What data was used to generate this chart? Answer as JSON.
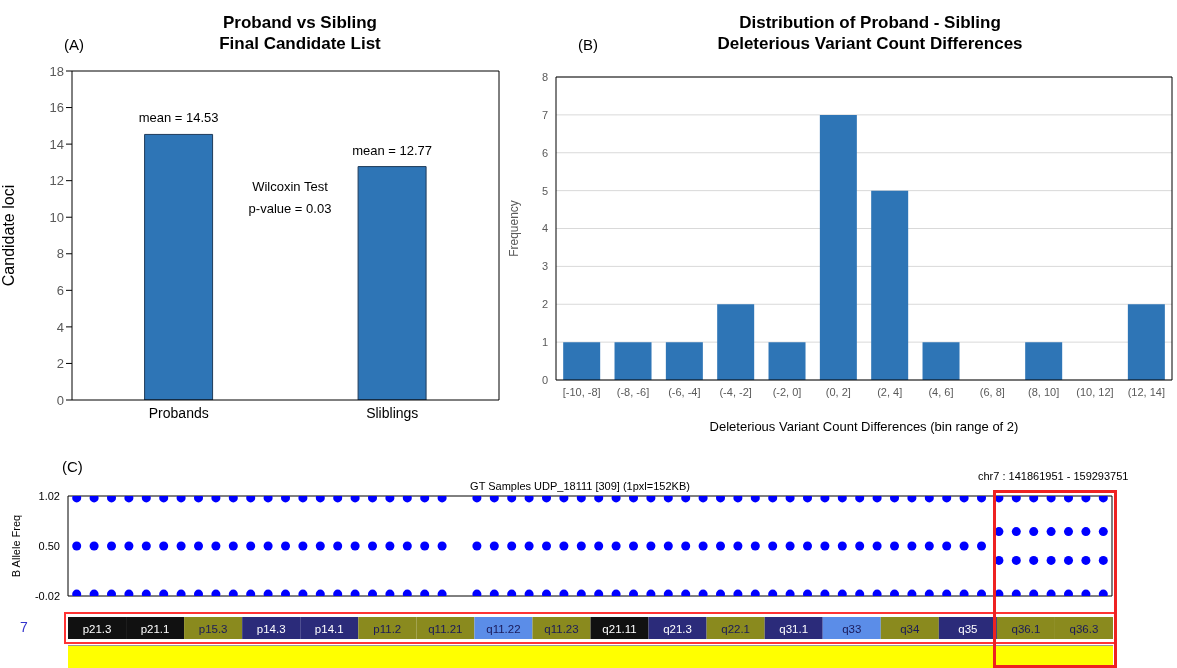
{
  "chart_data": [
    {
      "type": "bar",
      "title": "Proband vs Sibling\nFinal Candidate List",
      "ylabel": "Candidate loci",
      "categories": [
        "Probands",
        "Sliblings"
      ],
      "values": [
        14.53,
        12.77
      ],
      "value_labels": [
        "mean = 14.53",
        "mean = 12.77"
      ],
      "color": "#2e75b6",
      "ylim": [
        0,
        18
      ],
      "yticks": [
        0,
        2,
        4,
        6,
        8,
        10,
        12,
        14,
        16,
        18
      ],
      "grid": false,
      "annotations": [
        "(A)",
        "Wilcoxin Test",
        "p-value = 0.03"
      ]
    },
    {
      "type": "bar",
      "title": "Distribution of Proband - Sibling\nDeleterious Variant Count Differences",
      "xlabel": "Deleterious Variant Count Differences (bin range of 2)",
      "ylabel": "Frequency",
      "categories": [
        "[-10, -8]",
        "(-8, -6]",
        "(-6, -4]",
        "(-4, -2]",
        "(-2, 0]",
        "(0, 2]",
        "(2, 4]",
        "(4, 6]",
        "(6, 8]",
        "(8, 10]",
        "(10, 12]",
        "(12, 14]"
      ],
      "values": [
        1,
        1,
        1,
        2,
        1,
        7,
        5,
        1,
        0,
        1,
        0,
        2
      ],
      "color": "#2e75b6",
      "ylim": [
        0,
        8
      ],
      "yticks": [
        0,
        1,
        2,
        3,
        4,
        5,
        6,
        7,
        8
      ],
      "grid": "y",
      "annotations": [
        "(B)"
      ]
    },
    {
      "type": "scatter",
      "title": "GT Samples UDP_18111 [309]  (1pxl=152KB)",
      "ylabel": "B Allele Freq",
      "categories": [
        null,
        null,
        null,
        null,
        null,
        null,
        null,
        null,
        null,
        null,
        null,
        null,
        null,
        null,
        null,
        null,
        null,
        null,
        null,
        null,
        null,
        null,
        null,
        null,
        null,
        null,
        null,
        null,
        null,
        null,
        null,
        null,
        null,
        null,
        null,
        null,
        null,
        null,
        null,
        null,
        null,
        null,
        null,
        null,
        null,
        null,
        null,
        null,
        null,
        null,
        null,
        null,
        null,
        null,
        null,
        null,
        null,
        null,
        null,
        null
      ],
      "ylim": [
        -0.02,
        1.02
      ],
      "yticks": [
        -0.02,
        {
          "value": 0.5,
          "label": "0.50"
        },
        1.02
      ],
      "tick_labels": "y",
      "marker": "circle",
      "grid": false,
      "annotations": [
        "(C)",
        "chr7 : 141861951 - 159293751"
      ],
      "series": [
        {
          "color": "#0000ff",
          "values": [
            1,
            1,
            1,
            1,
            1,
            1,
            1,
            1,
            1,
            1,
            1,
            1,
            1,
            1,
            1,
            1,
            1,
            1,
            1,
            1,
            1,
            1,
            null,
            1,
            1,
            1,
            1,
            1,
            1,
            1,
            1,
            1,
            1,
            1,
            1,
            1,
            1,
            1,
            1,
            1,
            1,
            1,
            1,
            1,
            1,
            1,
            1,
            1,
            1,
            1,
            1,
            1,
            1,
            1,
            1,
            1,
            1,
            1,
            1,
            1
          ]
        },
        {
          "color": "#0000ff",
          "values": [
            0.5,
            0.5,
            0.5,
            0.5,
            0.5,
            0.5,
            0.5,
            0.5,
            0.5,
            0.5,
            0.5,
            0.5,
            0.5,
            0.5,
            0.5,
            0.5,
            0.5,
            0.5,
            0.5,
            0.5,
            0.5,
            0.5,
            null,
            0.5,
            0.5,
            0.5,
            0.5,
            0.5,
            0.5,
            0.5,
            0.5,
            0.5,
            0.5,
            0.5,
            0.5,
            0.5,
            0.5,
            0.5,
            0.5,
            0.5,
            0.5,
            0.5,
            0.5,
            0.5,
            0.5,
            0.5,
            0.5,
            0.5,
            0.5,
            0.5,
            0.5,
            0.5,
            0.5,
            null,
            null,
            null,
            null,
            null,
            null,
            null
          ]
        },
        {
          "color": "#0000ff",
          "values": [
            null,
            null,
            null,
            null,
            null,
            null,
            null,
            null,
            null,
            null,
            null,
            null,
            null,
            null,
            null,
            null,
            null,
            null,
            null,
            null,
            null,
            null,
            null,
            null,
            null,
            null,
            null,
            null,
            null,
            null,
            null,
            null,
            null,
            null,
            null,
            null,
            null,
            null,
            null,
            null,
            null,
            null,
            null,
            null,
            null,
            null,
            null,
            null,
            null,
            null,
            null,
            null,
            null,
            0.65,
            0.65,
            0.65,
            0.65,
            0.65,
            0.65,
            0.65
          ]
        },
        {
          "color": "#0000ff",
          "values": [
            null,
            null,
            null,
            null,
            null,
            null,
            null,
            null,
            null,
            null,
            null,
            null,
            null,
            null,
            null,
            null,
            null,
            null,
            null,
            null,
            null,
            null,
            null,
            null,
            null,
            null,
            null,
            null,
            null,
            null,
            null,
            null,
            null,
            null,
            null,
            null,
            null,
            null,
            null,
            null,
            null,
            null,
            null,
            null,
            null,
            null,
            null,
            null,
            null,
            null,
            null,
            null,
            null,
            0.35,
            0.35,
            0.35,
            0.35,
            0.35,
            0.35,
            0.35
          ]
        },
        {
          "color": "#0000ff",
          "values": [
            0,
            0,
            0,
            0,
            0,
            0,
            0,
            0,
            0,
            0,
            0,
            0,
            0,
            0,
            0,
            0,
            0,
            0,
            0,
            0,
            0,
            0,
            null,
            0,
            0,
            0,
            0,
            0,
            0,
            0,
            0,
            0,
            0,
            0,
            0,
            0,
            0,
            0,
            0,
            0,
            0,
            0,
            0,
            0,
            0,
            0,
            0,
            0,
            0,
            0,
            0,
            0,
            0,
            0,
            0,
            0,
            0,
            0,
            0,
            0
          ]
        }
      ]
    },
    {
      "type": "other",
      "ylabel": "7",
      "categories": [
        "p21.3",
        "p21.1",
        "p15.3",
        "p14.3",
        "p14.1",
        "p11.2",
        "q11.21",
        "q11.22",
        "q11.23",
        "q21.11",
        "q21.3",
        "q22.1",
        "q31.1",
        "q33",
        "q34",
        "q35",
        "q36.1",
        "q36.3"
      ],
      "colors": [
        "#111111",
        "#111111",
        "#8a8a1e",
        "#2b2b7a",
        "#2b2b7a",
        "#8a8a1e",
        "#8a8a1e",
        "#5b8de8",
        "#8a8a1e",
        "#111111",
        "#2b2b7a",
        "#8a8a1e",
        "#2b2b7a",
        "#5b8de8",
        "#8a8a1e",
        "#2b2b7a",
        "#8a8a1e",
        "#8a8a1e"
      ]
    }
  ]
}
